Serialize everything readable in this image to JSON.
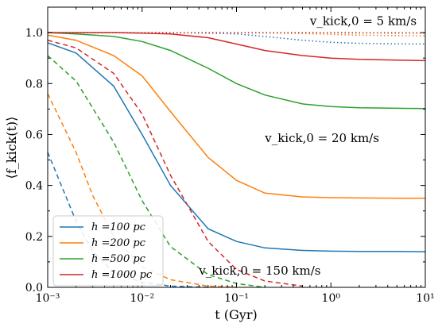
{
  "chart_data": {
    "type": "line",
    "xlabel": "t (Gyr)",
    "ylabel": "⟨f_kick(t)⟩",
    "xscale": "log",
    "xlim": [
      0.001,
      10
    ],
    "ylim": [
      0.0,
      1.1
    ],
    "x_ticks": [
      {
        "value": 0.001,
        "label": "10⁻³"
      },
      {
        "value": 0.01,
        "label": "10⁻²"
      },
      {
        "value": 0.1,
        "label": "10⁻¹"
      },
      {
        "value": 1,
        "label": "10⁰"
      },
      {
        "value": 10,
        "label": "10¹"
      }
    ],
    "y_ticks": [
      {
        "value": 0.0,
        "label": "0.0"
      },
      {
        "value": 0.2,
        "label": "0.2"
      },
      {
        "value": 0.4,
        "label": "0.4"
      },
      {
        "value": 0.6,
        "label": "0.6"
      },
      {
        "value": 0.8,
        "label": "0.8"
      },
      {
        "value": 1.0,
        "label": "1.0"
      }
    ],
    "legend_position": "lower-left",
    "series": [
      {
        "name": "h =100 pc",
        "color": "#1f77b4",
        "style": "solid",
        "x": [
          0.001,
          0.002,
          0.005,
          0.01,
          0.02,
          0.05,
          0.1,
          0.2,
          0.5,
          1,
          2,
          5,
          10
        ],
        "y": [
          0.96,
          0.92,
          0.79,
          0.6,
          0.4,
          0.23,
          0.18,
          0.155,
          0.145,
          0.142,
          0.141,
          0.141,
          0.14
        ]
      },
      {
        "name": "h =200 pc",
        "color": "#ff7f0e",
        "style": "solid",
        "x": [
          0.001,
          0.002,
          0.005,
          0.01,
          0.02,
          0.05,
          0.1,
          0.2,
          0.5,
          1,
          2,
          5,
          10
        ],
        "y": [
          0.99,
          0.97,
          0.91,
          0.83,
          0.69,
          0.51,
          0.42,
          0.37,
          0.355,
          0.352,
          0.351,
          0.35,
          0.35
        ]
      },
      {
        "name": "h =500 pc",
        "color": "#2ca02c",
        "style": "solid",
        "x": [
          0.001,
          0.002,
          0.005,
          0.01,
          0.02,
          0.05,
          0.1,
          0.2,
          0.5,
          1,
          2,
          5,
          10
        ],
        "y": [
          1.0,
          0.995,
          0.985,
          0.965,
          0.93,
          0.86,
          0.8,
          0.755,
          0.72,
          0.71,
          0.705,
          0.703,
          0.702
        ]
      },
      {
        "name": "h =1000 pc",
        "color": "#d62728",
        "style": "solid",
        "x": [
          0.001,
          0.005,
          0.01,
          0.02,
          0.05,
          0.1,
          0.2,
          0.5,
          1,
          2,
          5,
          10
        ],
        "y": [
          1.0,
          1.0,
          0.998,
          0.995,
          0.98,
          0.955,
          0.93,
          0.91,
          0.9,
          0.895,
          0.892,
          0.89
        ]
      },
      {
        "name": "",
        "color": "#1f77b4",
        "style": "dotted",
        "x": [
          0.001,
          0.01,
          0.05,
          0.1,
          0.2,
          0.5,
          1,
          2,
          5,
          10
        ],
        "y": [
          1.0,
          1.0,
          0.998,
          0.995,
          0.985,
          0.97,
          0.962,
          0.958,
          0.956,
          0.955
        ]
      },
      {
        "name": "",
        "color": "#ff7f0e",
        "style": "dotted",
        "x": [
          0.001,
          0.1,
          0.5,
          1,
          2,
          5,
          10
        ],
        "y": [
          1.0,
          1.0,
          0.997,
          0.993,
          0.99,
          0.988,
          0.987
        ]
      },
      {
        "name": "",
        "color": "#2ca02c",
        "style": "dotted",
        "x": [
          0.001,
          1,
          10
        ],
        "y": [
          1.0,
          0.999,
          0.998
        ]
      },
      {
        "name": "",
        "color": "#d62728",
        "style": "dotted",
        "x": [
          0.001,
          1,
          10
        ],
        "y": [
          1.0,
          1.0,
          0.999
        ]
      },
      {
        "name": "",
        "color": "#1f77b4",
        "style": "dashed",
        "x": [
          0.001,
          0.002,
          0.003,
          0.005,
          0.01,
          0.02,
          0.05
        ],
        "y": [
          0.53,
          0.26,
          0.14,
          0.06,
          0.02,
          0.005,
          0.0
        ]
      },
      {
        "name": "",
        "color": "#ff7f0e",
        "style": "dashed",
        "x": [
          0.001,
          0.002,
          0.003,
          0.005,
          0.01,
          0.02,
          0.05,
          0.1
        ],
        "y": [
          0.76,
          0.53,
          0.36,
          0.2,
          0.08,
          0.03,
          0.005,
          0.0
        ]
      },
      {
        "name": "",
        "color": "#2ca02c",
        "style": "dashed",
        "x": [
          0.001,
          0.002,
          0.005,
          0.01,
          0.02,
          0.05,
          0.1,
          0.2
        ],
        "y": [
          0.91,
          0.81,
          0.57,
          0.34,
          0.16,
          0.05,
          0.015,
          0.0
        ]
      },
      {
        "name": "",
        "color": "#d62728",
        "style": "dashed",
        "x": [
          0.001,
          0.002,
          0.005,
          0.01,
          0.02,
          0.05,
          0.1,
          0.2,
          0.5
        ],
        "y": [
          0.97,
          0.94,
          0.84,
          0.68,
          0.44,
          0.18,
          0.07,
          0.025,
          0.005
        ]
      }
    ],
    "annotations": [
      {
        "text": "v_kick,0 = 5 km/s",
        "x": 0.6,
        "y": 1.03
      },
      {
        "text": "v_kick,0 = 20 km/s",
        "x": 0.2,
        "y": 0.57
      },
      {
        "text": "v_kick,0 = 150 km/s",
        "x": 0.04,
        "y": 0.05
      }
    ]
  }
}
